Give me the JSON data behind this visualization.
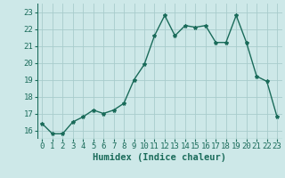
{
  "x": [
    0,
    1,
    2,
    3,
    4,
    5,
    6,
    7,
    8,
    9,
    10,
    11,
    12,
    13,
    14,
    15,
    16,
    17,
    18,
    19,
    20,
    21,
    22,
    23
  ],
  "y": [
    16.4,
    15.8,
    15.8,
    16.5,
    16.8,
    17.2,
    17.0,
    17.2,
    17.6,
    19.0,
    19.9,
    21.6,
    22.8,
    21.6,
    22.2,
    22.1,
    22.2,
    21.2,
    21.2,
    22.8,
    21.2,
    19.2,
    18.9,
    16.8
  ],
  "line_color": "#1a6b5a",
  "marker": "*",
  "marker_size": 3,
  "bg_color": "#cde8e8",
  "grid_color": "#a8cccc",
  "xlabel": "Humidex (Indice chaleur)",
  "ylim": [
    15.5,
    23.5
  ],
  "xlim": [
    -0.5,
    23.5
  ],
  "yticks": [
    16,
    17,
    18,
    19,
    20,
    21,
    22,
    23
  ],
  "xticks": [
    0,
    1,
    2,
    3,
    4,
    5,
    6,
    7,
    8,
    9,
    10,
    11,
    12,
    13,
    14,
    15,
    16,
    17,
    18,
    19,
    20,
    21,
    22,
    23
  ],
  "xlabel_fontsize": 7.5,
  "tick_fontsize": 6.5,
  "tick_color": "#1a6b5a",
  "linewidth": 1.0
}
